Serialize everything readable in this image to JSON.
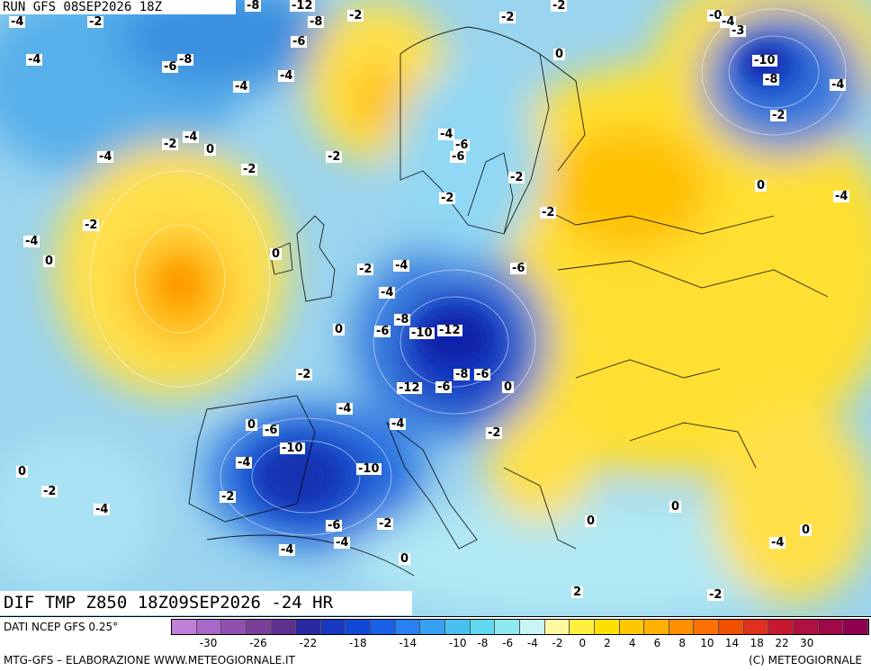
{
  "header": {
    "run_label": "RUN GFS 08SEP2026 18Z"
  },
  "title": {
    "text": "DIF TMP Z850 18Z09SEP2026 -24 HR"
  },
  "footer": {
    "source": "DATI NCEP GFS 0.25°",
    "credit": "MTG-GFS – ELABORAZIONE WWW.METEOGIORNALE.IT",
    "copyright": "(C) METEOGIORNALE"
  },
  "legend": {
    "colors": [
      "#c080d8",
      "#a868c8",
      "#9050b0",
      "#784098",
      "#603090",
      "#2828a0",
      "#1838c0",
      "#1048d8",
      "#1860e8",
      "#2880f0",
      "#38a0f0",
      "#48c0f0",
      "#60d8f0",
      "#90e8f0",
      "#c8f4f4",
      "#fff8a0",
      "#fff040",
      "#ffe000",
      "#ffc800",
      "#ffb000",
      "#ff9000",
      "#ff7000",
      "#f05000",
      "#e03020",
      "#c81830",
      "#b01040",
      "#a00848",
      "#900050"
    ],
    "tick_labels": [
      "-30",
      "-26",
      "-22",
      "-18",
      "-14",
      "-10",
      "-8",
      "-6",
      "-4",
      "-2",
      "0",
      "2",
      "4",
      "6",
      "8",
      "10",
      "14",
      "18",
      "22",
      "30"
    ]
  },
  "map_labels": [
    "-4",
    "-2",
    "-8",
    "-12",
    "-2",
    "-2",
    "-2",
    "-0",
    "-4",
    "-3",
    "-6",
    "-8",
    "-4",
    "-6",
    "-8",
    "-4",
    "0",
    "-10",
    "-8",
    "-4",
    "-4",
    "-2",
    "-6",
    "-2",
    "-4",
    "0",
    "-4",
    "-2",
    "-2",
    "-4",
    "-6",
    "-2",
    "-2",
    "-2",
    "0",
    "-4",
    "-2",
    "-4",
    "0",
    "0",
    "-2",
    "-4",
    "-6",
    "-4",
    "-8",
    "-12",
    "-6",
    "-10",
    "0",
    "-2",
    "-8",
    "-6",
    "-12",
    "-6",
    "0",
    "-4",
    "-4",
    "-2",
    "0",
    "-6",
    "-10",
    "-4",
    "-10",
    "0",
    "-2",
    "-4",
    "-2",
    "-6",
    "-4",
    "-2",
    "-4",
    "0",
    "0",
    "0",
    "-4",
    "0",
    "-2",
    "2"
  ]
}
